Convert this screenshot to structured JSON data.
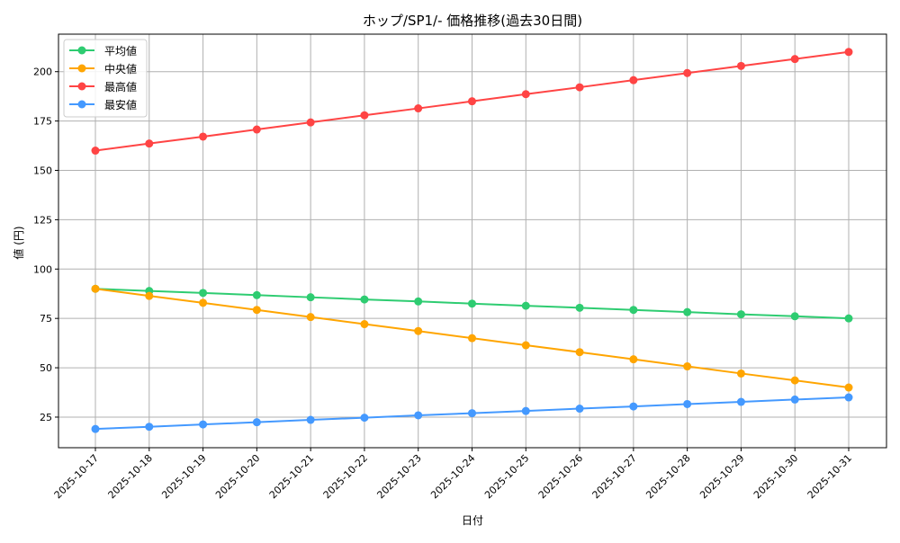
{
  "chart_data": {
    "type": "line",
    "title": "ホップ/SP1/- 価格推移(過去30日間)",
    "xlabel": "日付",
    "ylabel": "値 (円)",
    "ylim": [
      9.5,
      219
    ],
    "yticks": [
      25,
      50,
      75,
      100,
      125,
      150,
      175,
      200
    ],
    "grid": true,
    "legend_position": "top-left",
    "x": [
      "2025-10-17",
      "2025-10-18",
      "2025-10-19",
      "2025-10-20",
      "2025-10-21",
      "2025-10-22",
      "2025-10-23",
      "2025-10-24",
      "2025-10-25",
      "2025-10-26",
      "2025-10-27",
      "2025-10-28",
      "2025-10-29",
      "2025-10-30",
      "2025-10-31"
    ],
    "series": [
      {
        "name": "平均値",
        "color": "#2ecc71",
        "values": [
          90,
          88.9,
          87.9,
          86.8,
          85.7,
          84.6,
          83.6,
          82.5,
          81.4,
          80.4,
          79.3,
          78.2,
          77.1,
          76.1,
          75
        ]
      },
      {
        "name": "中央値",
        "color": "#ffa500",
        "values": [
          90,
          86.4,
          82.9,
          79.3,
          75.7,
          72.1,
          68.6,
          65,
          61.4,
          57.9,
          54.3,
          50.7,
          47.1,
          43.6,
          40
        ]
      },
      {
        "name": "最高値",
        "color": "#ff4444",
        "values": [
          160,
          163.6,
          167.1,
          170.7,
          174.3,
          177.9,
          181.4,
          185,
          188.6,
          192.1,
          195.7,
          199.3,
          202.9,
          206.4,
          210
        ]
      },
      {
        "name": "最安値",
        "color": "#4499ff",
        "values": [
          19,
          20.1,
          21.3,
          22.4,
          23.6,
          24.7,
          25.9,
          27,
          28.1,
          29.3,
          30.4,
          31.6,
          32.7,
          33.9,
          35
        ]
      }
    ]
  }
}
